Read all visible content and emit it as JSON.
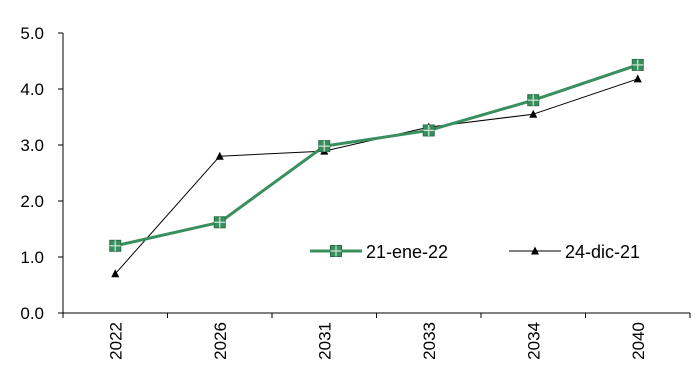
{
  "chart_data": {
    "type": "line",
    "title": "",
    "xlabel": "",
    "ylabel": "",
    "categories": [
      "2022",
      "2026",
      "2031",
      "2033",
      "2034",
      "2040"
    ],
    "ylim": [
      0,
      5
    ],
    "yticks": [
      "0.0",
      "1.0",
      "2.0",
      "3.0",
      "4.0",
      "5.0"
    ],
    "grid": false,
    "legend_position": "center-right",
    "series": [
      {
        "name": "21-ene-22",
        "values": [
          1.2,
          1.62,
          2.98,
          3.26,
          3.8,
          4.43
        ],
        "color": "#3a8f5e",
        "marker": "square"
      },
      {
        "name": "24-dic-21",
        "values": [
          0.7,
          2.8,
          2.89,
          3.32,
          3.55,
          4.18
        ],
        "color": "#000000",
        "marker": "triangle"
      }
    ]
  }
}
